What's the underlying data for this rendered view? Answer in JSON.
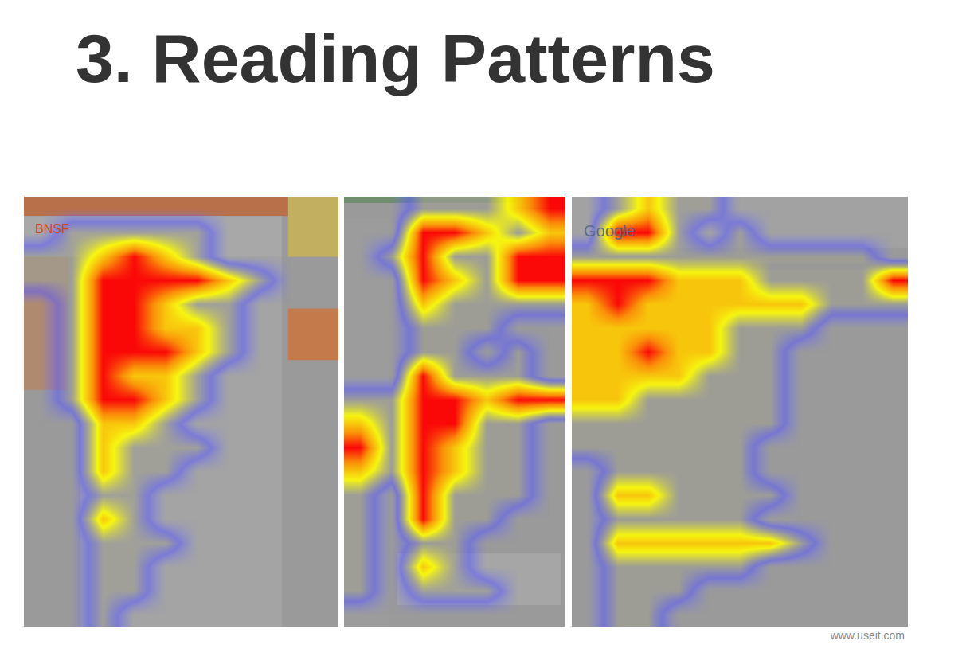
{
  "slide": {
    "title": "3. Reading Patterns",
    "source": "www.useit.com"
  },
  "chart_data": [
    {
      "type": "heatmap",
      "label": "BNSF",
      "tick_labels": false,
      "zlim": [
        0,
        3
      ],
      "cells": [
        [
          0,
          0,
          0,
          0,
          0,
          0,
          0,
          0,
          0,
          0
        ],
        [
          0,
          1,
          1,
          1,
          1,
          1,
          0,
          0,
          0,
          0
        ],
        [
          1,
          1,
          2,
          3,
          2,
          1,
          0,
          0,
          0,
          0
        ],
        [
          1,
          1,
          3,
          3,
          3,
          3,
          2,
          1,
          0,
          0
        ],
        [
          0,
          1,
          3,
          3,
          2,
          1,
          1,
          0,
          0,
          0
        ],
        [
          0,
          1,
          3,
          3,
          2,
          2,
          1,
          0,
          0,
          0
        ],
        [
          0,
          1,
          3,
          3,
          3,
          2,
          1,
          0,
          0,
          0
        ],
        [
          0,
          1,
          3,
          2,
          2,
          1,
          0,
          0,
          0,
          0
        ],
        [
          0,
          1,
          3,
          3,
          2,
          1,
          0,
          0,
          0,
          0
        ],
        [
          0,
          0,
          2,
          2,
          1,
          0,
          0,
          0,
          0,
          0
        ],
        [
          0,
          0,
          2,
          1,
          1,
          1,
          0,
          0,
          0,
          0
        ],
        [
          0,
          0,
          2,
          1,
          1,
          0,
          0,
          0,
          0,
          0
        ],
        [
          0,
          0,
          1,
          1,
          0,
          0,
          0,
          0,
          0,
          0
        ],
        [
          0,
          0,
          2,
          1,
          0,
          0,
          0,
          0,
          0,
          0
        ],
        [
          0,
          0,
          1,
          1,
          1,
          0,
          0,
          0,
          0,
          0
        ],
        [
          0,
          0,
          1,
          1,
          0,
          0,
          0,
          0,
          0,
          0
        ],
        [
          0,
          0,
          1,
          1,
          0,
          0,
          0,
          0,
          0,
          0
        ],
        [
          0,
          0,
          1,
          0,
          0,
          0,
          0,
          0,
          0,
          0
        ]
      ]
    },
    {
      "type": "heatmap",
      "tick_labels": false,
      "zlim": [
        0,
        3
      ],
      "cells": [
        [
          0,
          0,
          1,
          1,
          1,
          2,
          3
        ],
        [
          0,
          0,
          3,
          3,
          2,
          1,
          2
        ],
        [
          0,
          1,
          3,
          1,
          1,
          3,
          3
        ],
        [
          0,
          0,
          3,
          2,
          1,
          3,
          3
        ],
        [
          0,
          0,
          2,
          1,
          1,
          1,
          1
        ],
        [
          0,
          0,
          1,
          1,
          1,
          0,
          0
        ],
        [
          0,
          0,
          1,
          1,
          0,
          1,
          0
        ],
        [
          0,
          0,
          3,
          1,
          1,
          1,
          0
        ],
        [
          1,
          1,
          3,
          3,
          2,
          3,
          3
        ],
        [
          2,
          1,
          3,
          3,
          1,
          1,
          0
        ],
        [
          3,
          1,
          3,
          2,
          1,
          1,
          0
        ],
        [
          2,
          1,
          3,
          2,
          1,
          1,
          0
        ],
        [
          1,
          0,
          3,
          1,
          1,
          1,
          0
        ],
        [
          1,
          0,
          3,
          1,
          1,
          0,
          0
        ],
        [
          1,
          0,
          1,
          1,
          0,
          0,
          0
        ],
        [
          1,
          0,
          2,
          1,
          0,
          0,
          0
        ],
        [
          1,
          0,
          1,
          1,
          1,
          0,
          0
        ],
        [
          0,
          0,
          0,
          0,
          0,
          0,
          0
        ]
      ]
    },
    {
      "type": "heatmap",
      "label": "Google",
      "tick_labels": false,
      "zlim": [
        0,
        3
      ],
      "cells": [
        [
          0,
          1,
          2,
          1,
          1,
          0,
          0,
          0,
          0,
          0,
          0
        ],
        [
          0,
          3,
          3,
          1,
          0,
          1,
          0,
          0,
          0,
          0,
          0
        ],
        [
          1,
          1,
          1,
          1,
          1,
          1,
          1,
          1,
          1,
          1,
          0
        ],
        [
          3,
          3,
          3,
          2,
          2,
          2,
          1,
          1,
          1,
          1,
          3
        ],
        [
          2,
          3,
          2,
          2,
          2,
          2,
          2,
          2,
          1,
          1,
          1
        ],
        [
          2,
          2,
          2,
          2,
          2,
          1,
          1,
          1,
          0,
          0,
          0
        ],
        [
          2,
          2,
          3,
          2,
          2,
          1,
          1,
          0,
          0,
          0,
          0
        ],
        [
          2,
          2,
          2,
          2,
          1,
          1,
          1,
          0,
          0,
          0,
          0
        ],
        [
          2,
          2,
          1,
          1,
          1,
          1,
          1,
          0,
          0,
          0,
          0
        ],
        [
          1,
          1,
          1,
          1,
          1,
          1,
          1,
          0,
          0,
          0,
          0
        ],
        [
          1,
          1,
          1,
          1,
          1,
          1,
          0,
          0,
          0,
          0,
          0
        ],
        [
          0,
          1,
          1,
          1,
          1,
          1,
          0,
          0,
          0,
          0,
          0
        ],
        [
          0,
          2,
          2,
          1,
          1,
          1,
          1,
          0,
          0,
          0,
          0
        ],
        [
          0,
          1,
          1,
          1,
          1,
          1,
          0,
          0,
          0,
          0,
          0
        ],
        [
          0,
          2,
          2,
          2,
          2,
          2,
          2,
          1,
          0,
          0,
          0
        ],
        [
          0,
          1,
          1,
          1,
          1,
          1,
          0,
          0,
          0,
          0,
          0
        ],
        [
          0,
          1,
          1,
          1,
          0,
          0,
          0,
          0,
          0,
          0,
          0
        ],
        [
          0,
          1,
          1,
          0,
          0,
          0,
          0,
          0,
          0,
          0,
          0
        ]
      ]
    }
  ]
}
